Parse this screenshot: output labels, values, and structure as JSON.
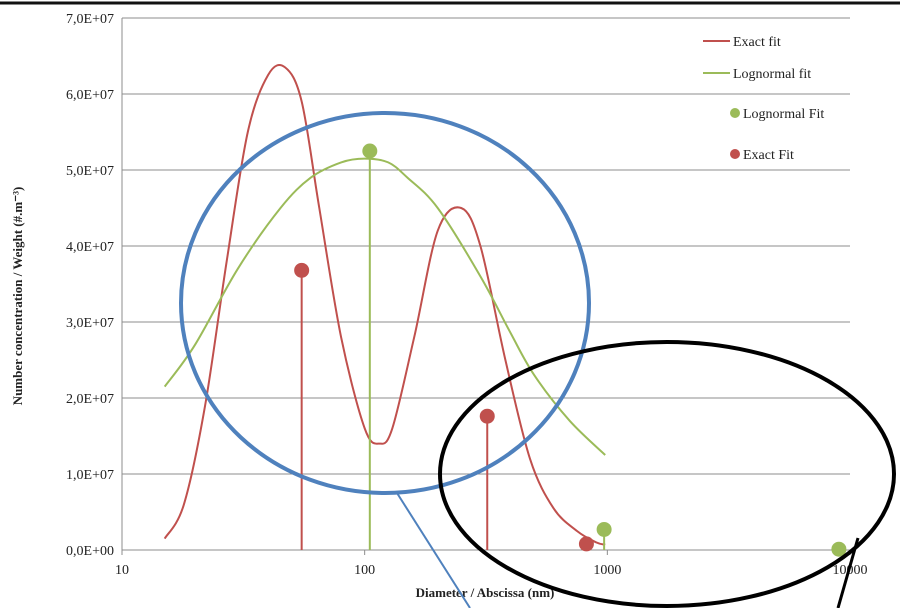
{
  "colors": {
    "exact": "#c0504d",
    "lognormal": "#9bbb59",
    "grid": "#8c8c8c",
    "blue_circle": "#4f81bd",
    "black_circle": "#000000"
  },
  "chart_data": {
    "type": "line",
    "title": "",
    "xlabel": "Diameter / Abscissa (nm)",
    "ylabel": "Number concentration / Weight (#.m⁻³)",
    "x_scale": "log",
    "xlim": [
      10,
      10000
    ],
    "ylim": [
      0,
      70000000
    ],
    "x_ticks": [
      10,
      100,
      1000,
      10000
    ],
    "x_tick_labels": [
      "10",
      "100",
      "1000",
      "10000"
    ],
    "y_ticks": [
      0,
      10000000,
      20000000,
      30000000,
      40000000,
      50000000,
      60000000,
      70000000
    ],
    "y_tick_labels": [
      "0,0E+00",
      "1,0E+07",
      "2,0E+07",
      "3,0E+07",
      "4,0E+07",
      "5,0E+07",
      "6,0E+07",
      "7,0E+07"
    ],
    "grid": "horizontal",
    "legend_position": "top-right",
    "series": [
      {
        "name": "Exact fit",
        "kind": "line",
        "color": "#c0504d",
        "x": [
          15,
          18,
          22,
          27,
          33,
          40,
          47,
          55,
          65,
          80,
          100,
          115,
          130,
          160,
          200,
          250,
          300,
          380,
          480,
          600,
          750,
          900,
          980
        ],
        "y": [
          1500000,
          6000000,
          19000000,
          38000000,
          55000000,
          62500000,
          63500000,
          59000000,
          45000000,
          28000000,
          16000000,
          14000000,
          16000000,
          28000000,
          42000000,
          45000000,
          40000000,
          25000000,
          12000000,
          5500000,
          2500000,
          1000000,
          700000
        ]
      },
      {
        "name": "Lognormal fit",
        "kind": "line",
        "color": "#9bbb59",
        "x": [
          15,
          20,
          30,
          45,
          60,
          80,
          100,
          125,
          150,
          200,
          300,
          400,
          500,
          700,
          980
        ],
        "y": [
          21500000,
          27000000,
          37000000,
          45000000,
          49000000,
          51000000,
          51500000,
          51000000,
          49000000,
          45000000,
          36000000,
          28500000,
          23000000,
          17000000,
          12500000
        ]
      },
      {
        "name": "Lognormal Fit",
        "kind": "stem",
        "color": "#9bbb59",
        "x": [
          105,
          970,
          9000
        ],
        "y": [
          52500000,
          2700000,
          100000
        ]
      },
      {
        "name": "Exact Fit",
        "kind": "stem",
        "color": "#c0504d",
        "x": [
          55,
          320,
          820
        ],
        "y": [
          36800000,
          17600000,
          800000
        ]
      }
    ]
  }
}
